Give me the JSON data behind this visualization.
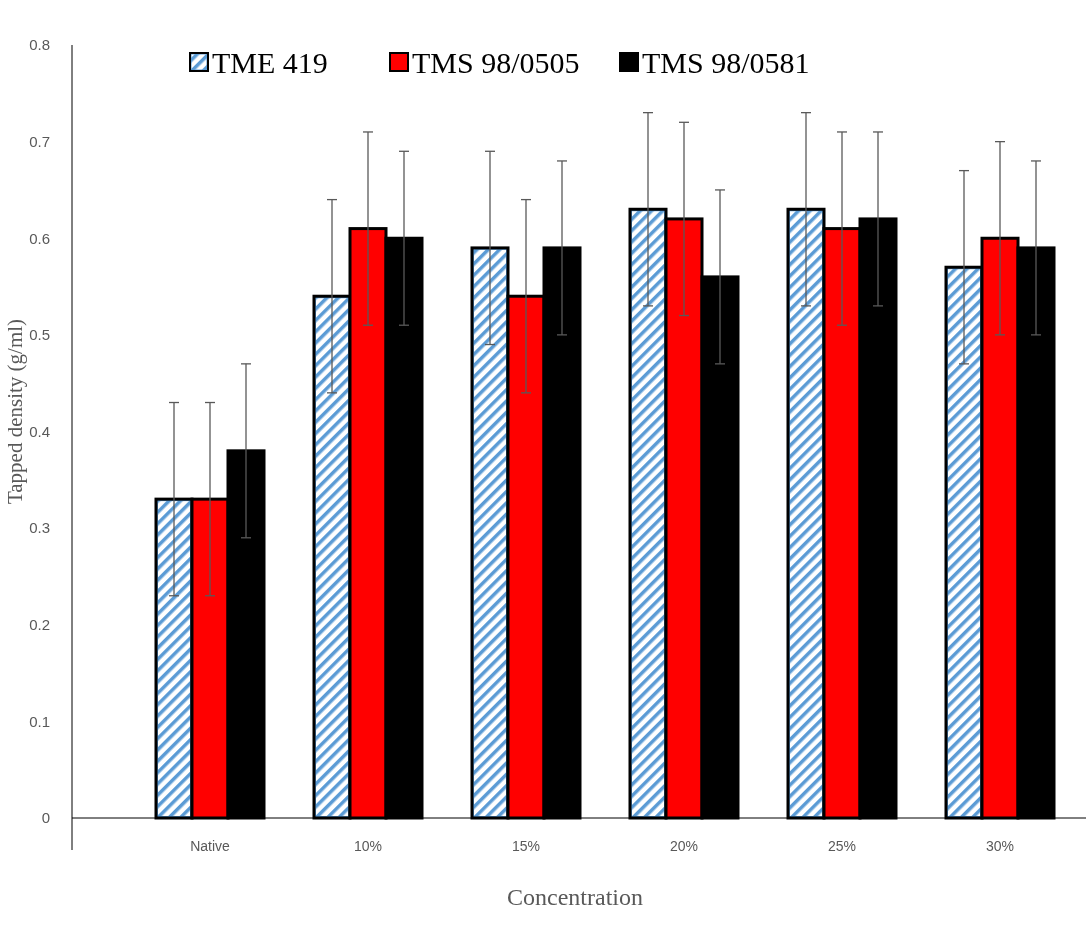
{
  "chart_data": {
    "type": "bar",
    "xlabel": "Concentration",
    "ylabel": "Tapped density (g/ml)",
    "categories": [
      "Native",
      "10%",
      "15%",
      "20%",
      "25%",
      "30%"
    ],
    "series": [
      {
        "name": "TME 419",
        "color": "#5b9bd5",
        "values": [
          0.33,
          0.54,
          0.59,
          0.63,
          0.63,
          0.57
        ],
        "errors": [
          0.1,
          0.1,
          0.1,
          0.1,
          0.1,
          0.1
        ]
      },
      {
        "name": "TMS 98/0505",
        "color": "#ff0000",
        "values": [
          0.33,
          0.61,
          0.54,
          0.62,
          0.61,
          0.6
        ],
        "errors": [
          0.1,
          0.1,
          0.1,
          0.1,
          0.1,
          0.1
        ]
      },
      {
        "name": "TMS 98/0581",
        "color": "#000000",
        "values": [
          0.38,
          0.6,
          0.59,
          0.56,
          0.62,
          0.59
        ],
        "errors": [
          0.09,
          0.09,
          0.09,
          0.09,
          0.09,
          0.09
        ]
      }
    ],
    "ylim": [
      0,
      0.8
    ],
    "yticks": [
      {
        "value": 0,
        "label": "0"
      },
      0.1,
      0.2,
      0.3,
      0.4,
      0.5,
      0.6,
      0.7,
      0.8
    ],
    "grid": false,
    "legend": "top"
  }
}
